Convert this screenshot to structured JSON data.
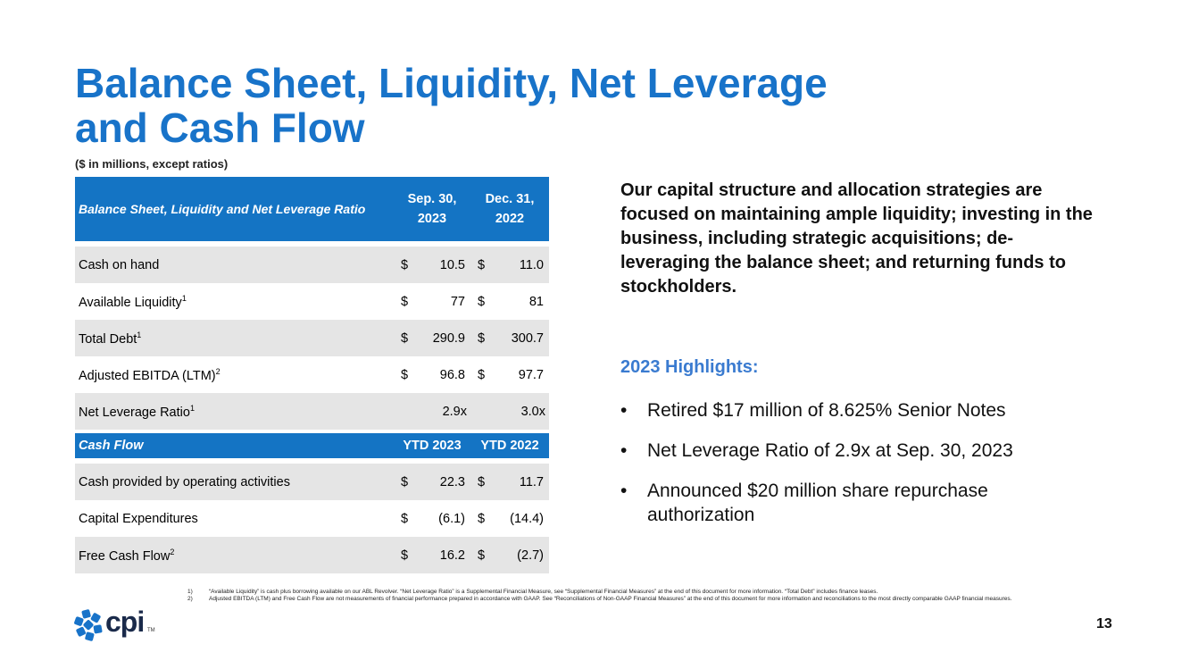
{
  "title": {
    "line1": "Balance Sheet, Liquidity, Net Leverage",
    "line2": "and Cash Flow"
  },
  "subtitle": "($ in millions, except ratios)",
  "table": {
    "header": {
      "label": "Balance Sheet, Liquidity and Net Leverage Ratio",
      "col1a": "Sep. 30,",
      "col1b": "2023",
      "col2a": "Dec. 31,",
      "col2b": "2022"
    },
    "rows": [
      {
        "name": "Cash on hand",
        "sup": "",
        "d1": "$",
        "v1": "10.5",
        "d2": "$",
        "v2": "11.0"
      },
      {
        "name": "Available Liquidity",
        "sup": "1",
        "d1": "$",
        "v1": "77",
        "d2": "$",
        "v2": "81"
      },
      {
        "name": "Total Debt",
        "sup": "1",
        "d1": "$",
        "v1": "290.9",
        "d2": "$",
        "v2": "300.7"
      },
      {
        "name": "Adjusted EBITDA (LTM)",
        "sup": "2",
        "d1": "$",
        "v1": "96.8",
        "d2": "$",
        "v2": "97.7"
      },
      {
        "name": "Net Leverage Ratio",
        "sup": "1",
        "v1": "2.9x",
        "v2": "3.0x"
      }
    ],
    "cf_header": {
      "label": "Cash Flow",
      "col1": "YTD 2023",
      "col2": "YTD 2022"
    },
    "cf_rows": [
      {
        "name": "Cash provided by operating activities",
        "sup": "",
        "d1": "$",
        "v1": "22.3",
        "d2": "$",
        "v2": "11.7"
      },
      {
        "name": "Capital Expenditures",
        "sup": "",
        "d1": "$",
        "v1": "(6.1)",
        "d2": "$",
        "v2": "(14.4)"
      },
      {
        "name": "Free Cash Flow",
        "sup": "2",
        "d1": "$",
        "v1": "16.2",
        "d2": "$",
        "v2": "(2.7)"
      }
    ]
  },
  "statement": "Our capital structure and allocation strategies are focused on maintaining ample liquidity; investing in the business, including strategic acquisitions; de-leveraging the balance sheet; and returning funds to stockholders.",
  "highlights": {
    "title": "2023 Highlights:",
    "bullet": "•",
    "items": [
      "Retired $17 million of 8.625% Senior Notes",
      "Net Leverage Ratio of 2.9x at Sep. 30, 2023",
      "Announced $20 million share repurchase authorization"
    ]
  },
  "footnotes": [
    {
      "num": "1)",
      "text": "“Available Liquidity” is cash plus borrowing available on our ABL Revolver. “Net Leverage Ratio” is a Supplemental Financial Measure, see “Supplemental Financial Measures” at the end of this document for more information. “Total Debt” includes finance leases."
    },
    {
      "num": "2)",
      "text": "Adjusted EBITDA (LTM) and Free Cash Flow are not measurements of financial performance prepared in accordance with GAAP. See “Reconciliations of Non-GAAP Financial Measures” at the end of this document for more information and reconciliations to the most directly comparable GAAP financial measures."
    }
  ],
  "logo": {
    "text": "cpi",
    "tm": "TM"
  },
  "page_number": "13",
  "colors": {
    "brand_blue": "#1873C9",
    "table_header": "#1474C4",
    "row_gray": "#E5E5E5",
    "highlight_blue": "#3A7BD0"
  }
}
